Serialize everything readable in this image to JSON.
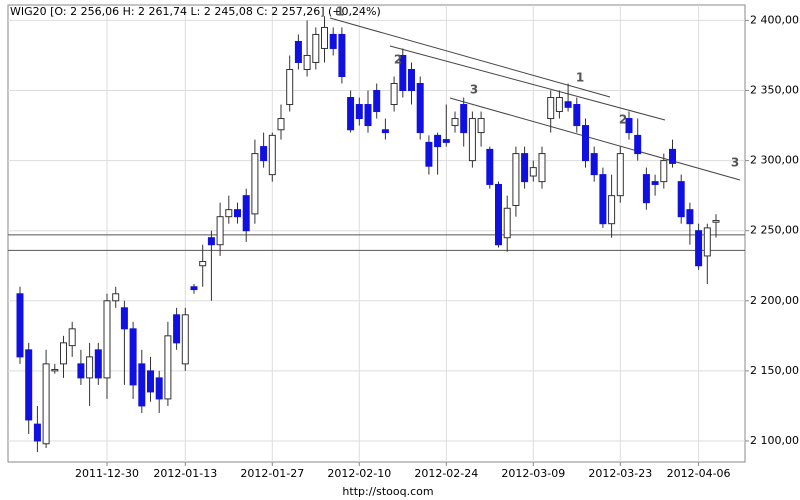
{
  "chart_data": {
    "type": "candlestick",
    "title": "WIG20 [O: 2 256,06  H: 2 261,74  L: 2 245,08  C: 2 257,26] (+0,24%)",
    "footer": "http://stooq.com",
    "categories": [
      null,
      null,
      null,
      null,
      null,
      null,
      null,
      null,
      null,
      null,
      "2011-12-30",
      null,
      null,
      null,
      null,
      null,
      null,
      null,
      null,
      "2012-01-13",
      null,
      null,
      null,
      null,
      null,
      null,
      null,
      null,
      null,
      "2012-01-27",
      null,
      null,
      null,
      null,
      null,
      null,
      null,
      null,
      null,
      "2012-02-10",
      null,
      null,
      null,
      null,
      null,
      null,
      null,
      null,
      null,
      "2012-02-24",
      null,
      null,
      null,
      null,
      null,
      null,
      null,
      null,
      null,
      "2012-03-09",
      null,
      null,
      null,
      null,
      null,
      null,
      null,
      null,
      null,
      "2012-03-23",
      null,
      null,
      null,
      null,
      null,
      null,
      null,
      null,
      "2012-04-06",
      null,
      null
    ],
    "open": [
      2205,
      2165,
      2112,
      2098,
      2150,
      2155,
      2168,
      2155,
      2145,
      2165,
      2145,
      2200,
      2195,
      2180,
      2155,
      2150,
      2145,
      2130,
      2190,
      2155,
      2210,
      2225,
      2245,
      2240,
      2260,
      2265,
      2275,
      2262,
      2310,
      2290,
      2322,
      2340,
      2385,
      2365,
      2370,
      2380,
      2390,
      2390,
      2345,
      2340,
      2340,
      2350,
      2322,
      2340,
      2375,
      2365,
      2355,
      2313,
      2318,
      2315,
      2325,
      2340,
      2300,
      2320,
      2308,
      2283,
      2245,
      2268,
      2305,
      2289,
      2285,
      2330,
      2335,
      2342,
      2340,
      2325,
      2305,
      2290,
      2255,
      2275,
      2330,
      2318,
      2290,
      2285,
      2285,
      2308,
      2285,
      2265,
      2250,
      2232,
      2256.06
    ],
    "high": [
      2210,
      2170,
      2125,
      2165,
      2155,
      2175,
      2185,
      2165,
      2170,
      2170,
      2205,
      2210,
      2200,
      2185,
      2165,
      2160,
      2150,
      2185,
      2195,
      2195,
      2212,
      2240,
      2250,
      2270,
      2275,
      2270,
      2280,
      2315,
      2320,
      2320,
      2340,
      2375,
      2390,
      2400,
      2395,
      2403,
      2395,
      2395,
      2350,
      2345,
      2350,
      2355,
      2330,
      2360,
      2380,
      2370,
      2360,
      2318,
      2320,
      2340,
      2335,
      2345,
      2335,
      2335,
      2310,
      2285,
      2275,
      2310,
      2310,
      2300,
      2310,
      2350,
      2350,
      2355,
      2345,
      2330,
      2310,
      2295,
      2290,
      2310,
      2335,
      2330,
      2295,
      2290,
      2305,
      2315,
      2290,
      2270,
      2255,
      2255,
      2261.74
    ],
    "low": [
      2155,
      2105,
      2092,
      2095,
      2148,
      2145,
      2160,
      2140,
      2125,
      2140,
      2130,
      2195,
      2140,
      2130,
      2120,
      2128,
      2120,
      2125,
      2165,
      2150,
      2205,
      2210,
      2200,
      2232,
      2255,
      2255,
      2242,
      2255,
      2295,
      2285,
      2315,
      2335,
      2365,
      2360,
      2365,
      2370,
      2375,
      2355,
      2320,
      2325,
      2320,
      2330,
      2315,
      2335,
      2345,
      2340,
      2315,
      2290,
      2290,
      2310,
      2320,
      2310,
      2295,
      2310,
      2280,
      2238,
      2235,
      2260,
      2280,
      2285,
      2280,
      2320,
      2330,
      2335,
      2320,
      2295,
      2285,
      2252,
      2245,
      2270,
      2315,
      2300,
      2265,
      2275,
      2280,
      2295,
      2255,
      2240,
      2222,
      2212,
      2245.08
    ],
    "close": [
      2160,
      2115,
      2100,
      2155,
      2151,
      2170,
      2180,
      2145,
      2160,
      2145,
      2200,
      2205,
      2180,
      2140,
      2125,
      2135,
      2130,
      2175,
      2170,
      2190,
      2208,
      2228,
      2240,
      2260,
      2265,
      2260,
      2250,
      2305,
      2300,
      2318,
      2330,
      2365,
      2370,
      2375,
      2390,
      2395,
      2380,
      2360,
      2322,
      2330,
      2325,
      2335,
      2320,
      2355,
      2350,
      2350,
      2320,
      2296,
      2310,
      2313,
      2330,
      2320,
      2330,
      2330,
      2283,
      2240,
      2266,
      2305,
      2285,
      2295,
      2305,
      2345,
      2345,
      2338,
      2325,
      2300,
      2290,
      2255,
      2275,
      2305,
      2320,
      2305,
      2270,
      2283,
      2300,
      2298,
      2260,
      2255,
      2225,
      2252,
      2257.26
    ],
    "up_color": "#ffffff",
    "down_color": "#1010e0",
    "ylim": [
      2085,
      2411
    ],
    "yticks": [
      {
        "value": 2100,
        "label": "2 100,00"
      },
      {
        "value": 2150,
        "label": "2 150,00"
      },
      {
        "value": 2200,
        "label": "2 200,00"
      },
      {
        "value": 2250,
        "label": "2 250,00"
      },
      {
        "value": 2300,
        "label": "2 300,00"
      },
      {
        "value": 2350,
        "label": "2 350,00"
      },
      {
        "value": 2400,
        "label": "2 400,00"
      }
    ],
    "hlines": [
      2247,
      2236
    ],
    "annotations": [
      "1",
      "2",
      "3",
      "1",
      "2",
      "3"
    ],
    "grid": true
  }
}
